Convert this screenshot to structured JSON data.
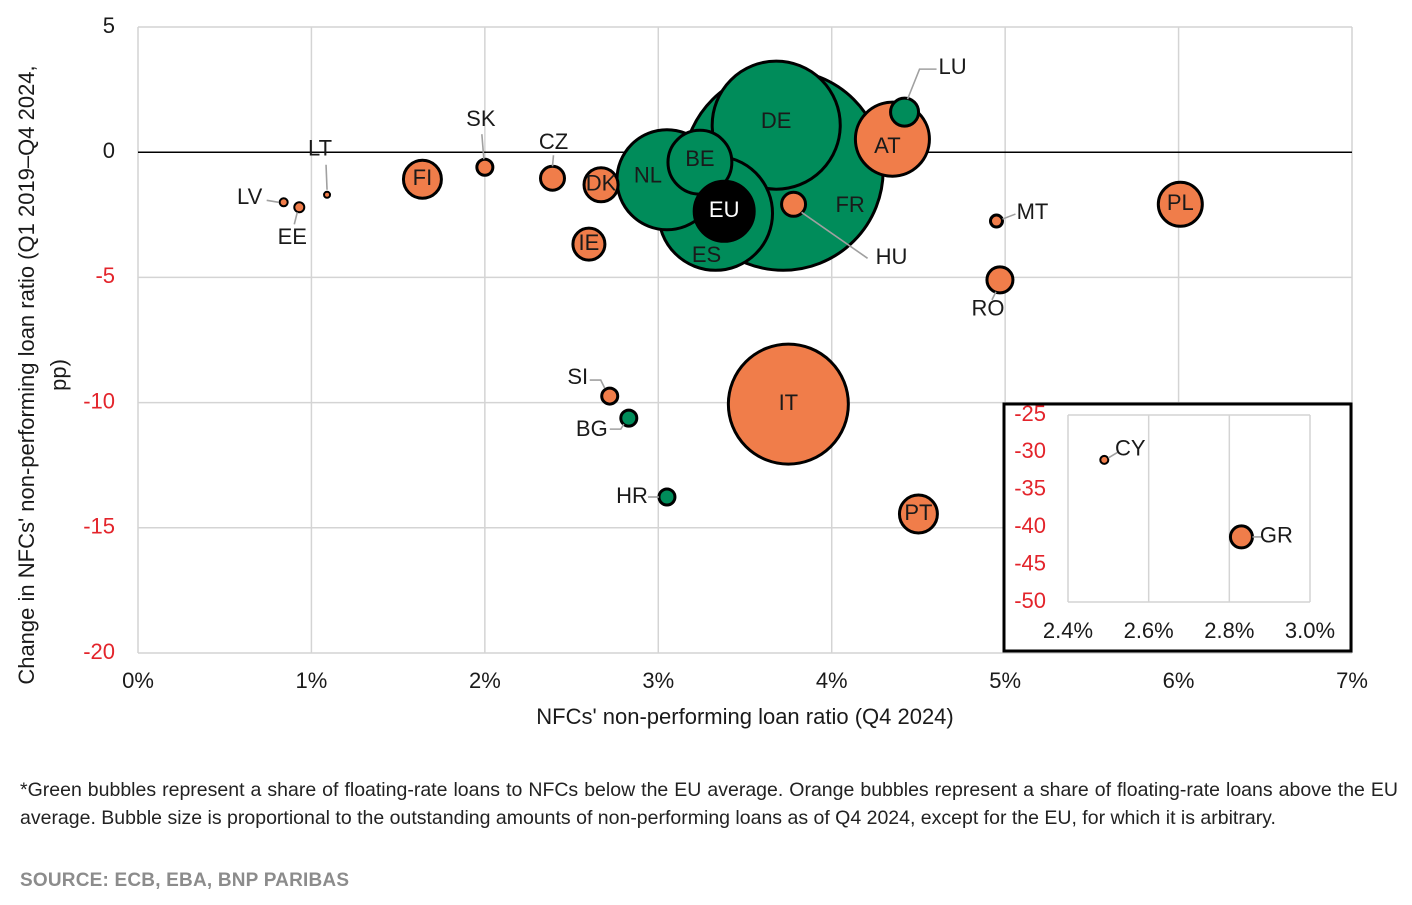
{
  "chart_data": [
    {
      "type": "scatter",
      "bubble": true,
      "xlabel": "NFCs' non-performing loan ratio (Q4 2024)",
      "ylabel": "Change in NFCs' non-performing loan ratio (Q1 2019–Q4 2024, pp)",
      "xlim": [
        0,
        7
      ],
      "ylim": [
        -20,
        5
      ],
      "x_ticks": [
        "0%",
        "1%",
        "2%",
        "3%",
        "4%",
        "5%",
        "6%",
        "7%"
      ],
      "y_ticks": [
        "5",
        "0",
        "-5",
        "-10",
        "-15",
        "-20"
      ],
      "grid": true,
      "colors": {
        "green": "#008c5a",
        "orange": "#f07d4a",
        "black": "#000000",
        "negative_tick": "#e3242b",
        "grid": "#d4d4d4"
      },
      "points": [
        {
          "name": "LV",
          "x": 0.84,
          "y": -2.0,
          "size": 0.16,
          "color": "orange"
        },
        {
          "name": "EE",
          "x": 0.93,
          "y": -2.2,
          "size": 0.25,
          "color": "orange"
        },
        {
          "name": "LT",
          "x": 1.09,
          "y": -1.7,
          "size": 0.09,
          "color": "orange"
        },
        {
          "name": "FI",
          "x": 1.64,
          "y": -1.08,
          "size": 3.6,
          "color": "orange"
        },
        {
          "name": "SK",
          "x": 2.0,
          "y": -0.6,
          "size": 0.64,
          "color": "orange"
        },
        {
          "name": "CZ",
          "x": 2.39,
          "y": -1.04,
          "size": 1.44,
          "color": "orange"
        },
        {
          "name": "DK",
          "x": 2.67,
          "y": -1.3,
          "size": 2.9,
          "color": "orange"
        },
        {
          "name": "IE",
          "x": 2.6,
          "y": -3.67,
          "size": 2.56,
          "color": "orange"
        },
        {
          "name": "NL",
          "x": 3.05,
          "y": -1.1,
          "size": 25,
          "color": "green"
        },
        {
          "name": "BE",
          "x": 3.24,
          "y": -0.4,
          "size": 10.2,
          "color": "green"
        },
        {
          "name": "DE",
          "x": 3.68,
          "y": 1.08,
          "size": 41,
          "color": "green"
        },
        {
          "name": "FR",
          "x": 3.72,
          "y": -0.72,
          "size": 100,
          "color": "green"
        },
        {
          "name": "ES",
          "x": 3.33,
          "y": -2.44,
          "size": 32.5,
          "color": "green"
        },
        {
          "name": "EU",
          "x": 3.38,
          "y": -2.36,
          "size": 9,
          "color": "black"
        },
        {
          "name": "HU",
          "x": 3.78,
          "y": -2.08,
          "size": 1.44,
          "color": "orange"
        },
        {
          "name": "AT",
          "x": 4.35,
          "y": 0.52,
          "size": 13.7,
          "color": "orange"
        },
        {
          "name": "LU",
          "x": 4.42,
          "y": 1.6,
          "size": 1.96,
          "color": "green"
        },
        {
          "name": "MT",
          "x": 4.95,
          "y": -2.75,
          "size": 0.36,
          "color": "orange"
        },
        {
          "name": "RO",
          "x": 4.97,
          "y": -5.1,
          "size": 1.69,
          "color": "orange"
        },
        {
          "name": "PL",
          "x": 6.01,
          "y": -2.08,
          "size": 4.84,
          "color": "orange"
        },
        {
          "name": "SI",
          "x": 2.72,
          "y": -9.74,
          "size": 0.64,
          "color": "orange"
        },
        {
          "name": "BG",
          "x": 2.83,
          "y": -10.62,
          "size": 0.64,
          "color": "green"
        },
        {
          "name": "HR",
          "x": 3.05,
          "y": -13.77,
          "size": 0.64,
          "color": "green"
        },
        {
          "name": "IT",
          "x": 3.75,
          "y": -10.06,
          "size": 36,
          "color": "orange"
        },
        {
          "name": "PT",
          "x": 4.5,
          "y": -14.45,
          "size": 3.6,
          "color": "orange"
        }
      ]
    },
    {
      "type": "scatter",
      "bubble": true,
      "xlim": [
        2.4,
        3.0
      ],
      "ylim": [
        -50,
        -25
      ],
      "x_ticks": [
        "2.4%",
        "2.6%",
        "2.8%",
        "3.0%"
      ],
      "y_ticks": [
        "-25",
        "-30",
        "-35",
        "-40",
        "-45",
        "-50"
      ],
      "points": [
        {
          "name": "CY",
          "x": 2.49,
          "y": -31.0,
          "size": 0.16,
          "color": "orange"
        },
        {
          "name": "GR",
          "x": 2.83,
          "y": -41.3,
          "size": 1.21,
          "color": "orange"
        }
      ]
    }
  ],
  "footnote": "*Green bubbles represent a share of floating-rate loans to NFCs below the EU average. Orange bubbles represent a share of floating-rate loans above the EU average. Bubble size is proportional to the outstanding amounts of non-performing loans as of Q4 2024, except for the EU, for which it is arbitrary.",
  "source": "SOURCE: ECB, EBA, BNP PARIBAS"
}
